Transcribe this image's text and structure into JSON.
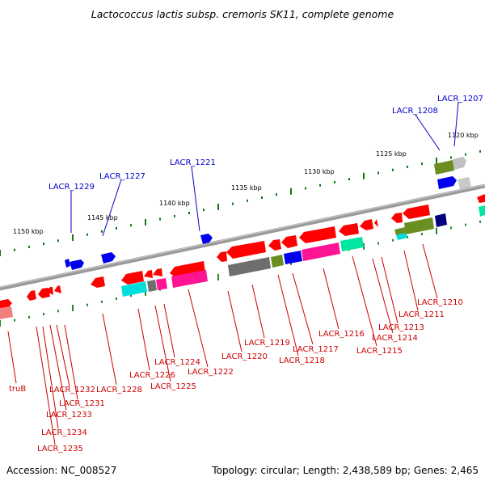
{
  "title": "Lactococcus lactis subsp. cremoris SK11, complete genome",
  "footer": {
    "accession": "Accession: NC_008527",
    "summary": "Topology: circular; Length: 2,438,589 bp; Genes: 2,465"
  },
  "colors": {
    "backbone": "#808080",
    "tick_major": "#117711",
    "tick_minor": "#228822",
    "forward_label": "#0000cc",
    "reverse_label": "#cc0000",
    "red": "#ff0000",
    "blue": "#0000ee",
    "gray": "#6e6e6e",
    "olive": "#6b8e23",
    "magenta": "#ff1493",
    "cyan": "#00dddd",
    "teal": "#00e5a0",
    "navy": "#000080",
    "light_gray": "#c0c0c0",
    "pink": "#f08080"
  },
  "ticks": [
    {
      "label": "1120 kbp"
    },
    {
      "label": "1125 kbp"
    },
    {
      "label": "1130 kbp"
    },
    {
      "label": "1135 kbp"
    },
    {
      "label": "1140 kbp"
    },
    {
      "label": "1145 kbp"
    },
    {
      "label": "1150 kbp"
    }
  ],
  "labels_forward": [
    {
      "text": "LACR_1207"
    },
    {
      "text": "LACR_1208"
    },
    {
      "text": "LACR_1221"
    },
    {
      "text": "LACR_1227"
    },
    {
      "text": "LACR_1229"
    }
  ],
  "labels_reverse": [
    {
      "text": "LACR_1210"
    },
    {
      "text": "LACR_1211"
    },
    {
      "text": "LACR_1213"
    },
    {
      "text": "LACR_1214"
    },
    {
      "text": "LACR_1215"
    },
    {
      "text": "LACR_1216"
    },
    {
      "text": "LACR_1217"
    },
    {
      "text": "LACR_1218"
    },
    {
      "text": "LACR_1219"
    },
    {
      "text": "LACR_1220"
    },
    {
      "text": "LACR_1222"
    },
    {
      "text": "LACR_1224"
    },
    {
      "text": "LACR_1225"
    },
    {
      "text": "LACR_1226"
    },
    {
      "text": "LACR_1228"
    },
    {
      "text": "truB"
    },
    {
      "text": "LACR_1231"
    },
    {
      "text": "LACR_1232"
    },
    {
      "text": "LACR_1233"
    },
    {
      "text": "LACR_1234"
    },
    {
      "text": "LACR_1235"
    }
  ]
}
